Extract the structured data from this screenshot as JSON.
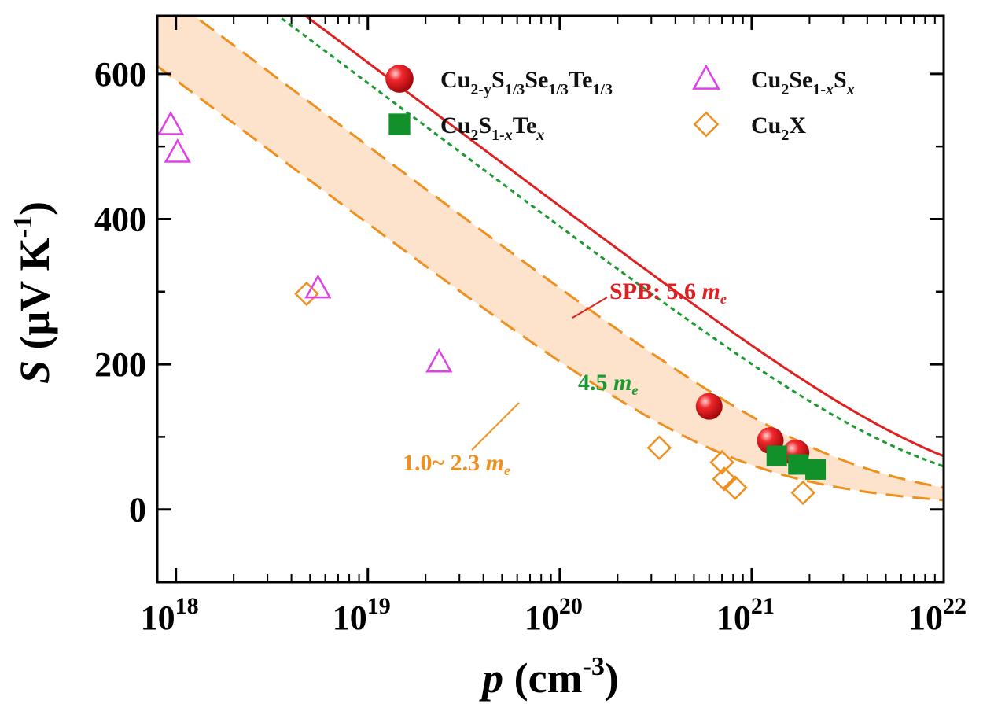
{
  "chart_data": {
    "type": "scatter",
    "x_scale": "log",
    "xlim": [
      8e+17,
      1e+22
    ],
    "ylim": [
      -100,
      680
    ],
    "xlabel": {
      "italic": "p",
      "rest": " (cm",
      "sup": "-3",
      "close": ")"
    },
    "ylabel": {
      "italic": "S",
      "rest": " (μV K",
      "sup": "-1",
      "close": ")"
    },
    "x_ticks": [
      {
        "value": 1e+18,
        "base": "10",
        "exp": "18"
      },
      {
        "value": 1e+19,
        "base": "10",
        "exp": "19"
      },
      {
        "value": 1e+20,
        "base": "10",
        "exp": "20"
      },
      {
        "value": 1e+21,
        "base": "10",
        "exp": "21"
      },
      {
        "value": 1e+22,
        "base": "10",
        "exp": "22"
      }
    ],
    "y_ticks": [
      {
        "value": 0,
        "label": "0"
      },
      {
        "value": 200,
        "label": "200"
      },
      {
        "value": 400,
        "label": "400"
      },
      {
        "value": 600,
        "label": "600"
      }
    ],
    "series": [
      {
        "key": "cu2ysste",
        "marker": "sphere",
        "color": "#e8141a",
        "legend": [
          {
            "t": "Cu"
          },
          {
            "t": "2-y",
            "sub": true
          },
          {
            "t": "S"
          },
          {
            "t": "1/3",
            "sub": true
          },
          {
            "t": "Se"
          },
          {
            "t": "1/3",
            "sub": true
          },
          {
            "t": "Te"
          },
          {
            "t": "1/3",
            "sub": true
          }
        ],
        "points": [
          [
            6e+20,
            142
          ],
          [
            1.25e+21,
            95
          ],
          [
            1.7e+21,
            78
          ]
        ]
      },
      {
        "key": "cu2stex",
        "marker": "square",
        "color": "#12912a",
        "legend": [
          {
            "t": "Cu"
          },
          {
            "t": "2",
            "sub": true
          },
          {
            "t": "S"
          },
          {
            "t": "1-",
            "sub": true
          },
          {
            "t": "x",
            "sub": true,
            "italic": true
          },
          {
            "t": "Te"
          },
          {
            "t": "x",
            "sub": true,
            "italic": true
          }
        ],
        "points": [
          [
            1.35e+21,
            74
          ],
          [
            1.75e+21,
            62
          ],
          [
            2.15e+21,
            55
          ]
        ]
      },
      {
        "key": "cu2sesx",
        "marker": "triangle",
        "color": "#e040e8",
        "legend": [
          {
            "t": "Cu"
          },
          {
            "t": "2",
            "sub": true
          },
          {
            "t": "Se"
          },
          {
            "t": "1-",
            "sub": true
          },
          {
            "t": "x",
            "sub": true,
            "italic": true
          },
          {
            "t": "S"
          },
          {
            "t": "x",
            "sub": true,
            "italic": true
          }
        ],
        "points": [
          [
            9.4e+17,
            530
          ],
          [
            1.02e+18,
            492
          ],
          [
            5.5e+18,
            305
          ],
          [
            2.35e+19,
            203
          ]
        ]
      },
      {
        "key": "cu2x",
        "marker": "diamond",
        "color": "#ee9020",
        "legend": [
          {
            "t": "Cu"
          },
          {
            "t": "2",
            "sub": true
          },
          {
            "t": "X"
          }
        ],
        "points": [
          [
            4.8e+18,
            297
          ],
          [
            3.3e+20,
            85
          ],
          [
            7e+20,
            65
          ],
          [
            7.2e+20,
            42
          ],
          [
            8.2e+20,
            30
          ],
          [
            1.85e+21,
            23
          ]
        ]
      }
    ],
    "curves": [
      {
        "key": "spb56",
        "style": "solid",
        "color": "#e02020",
        "mstar": 5.6
      },
      {
        "key": "spb45",
        "style": "dotted",
        "color": "#1a9a30",
        "mstar": 4.5
      },
      {
        "key": "spb23",
        "style": "dashed",
        "color": "#ee9020",
        "mstar": 2.3
      },
      {
        "key": "spb10",
        "style": "dashed",
        "color": "#ee9020",
        "mstar": 1.0
      }
    ],
    "band": {
      "between": [
        "spb23",
        "spb10"
      ],
      "color": "#fde3cb"
    },
    "annotations": [
      {
        "key": "spb56-label",
        "prefix": "SPB: 5.6 ",
        "unit": "m",
        "unit_sub": "e",
        "color": "#e02020"
      },
      {
        "key": "spb45-label",
        "prefix": "4.5 ",
        "unit": "m",
        "unit_sub": "e",
        "color": "#1a9a30"
      },
      {
        "key": "band-label",
        "prefix": "1.0~ 2.3 ",
        "unit": "m",
        "unit_sub": "e",
        "color": "#ee9020"
      }
    ]
  }
}
